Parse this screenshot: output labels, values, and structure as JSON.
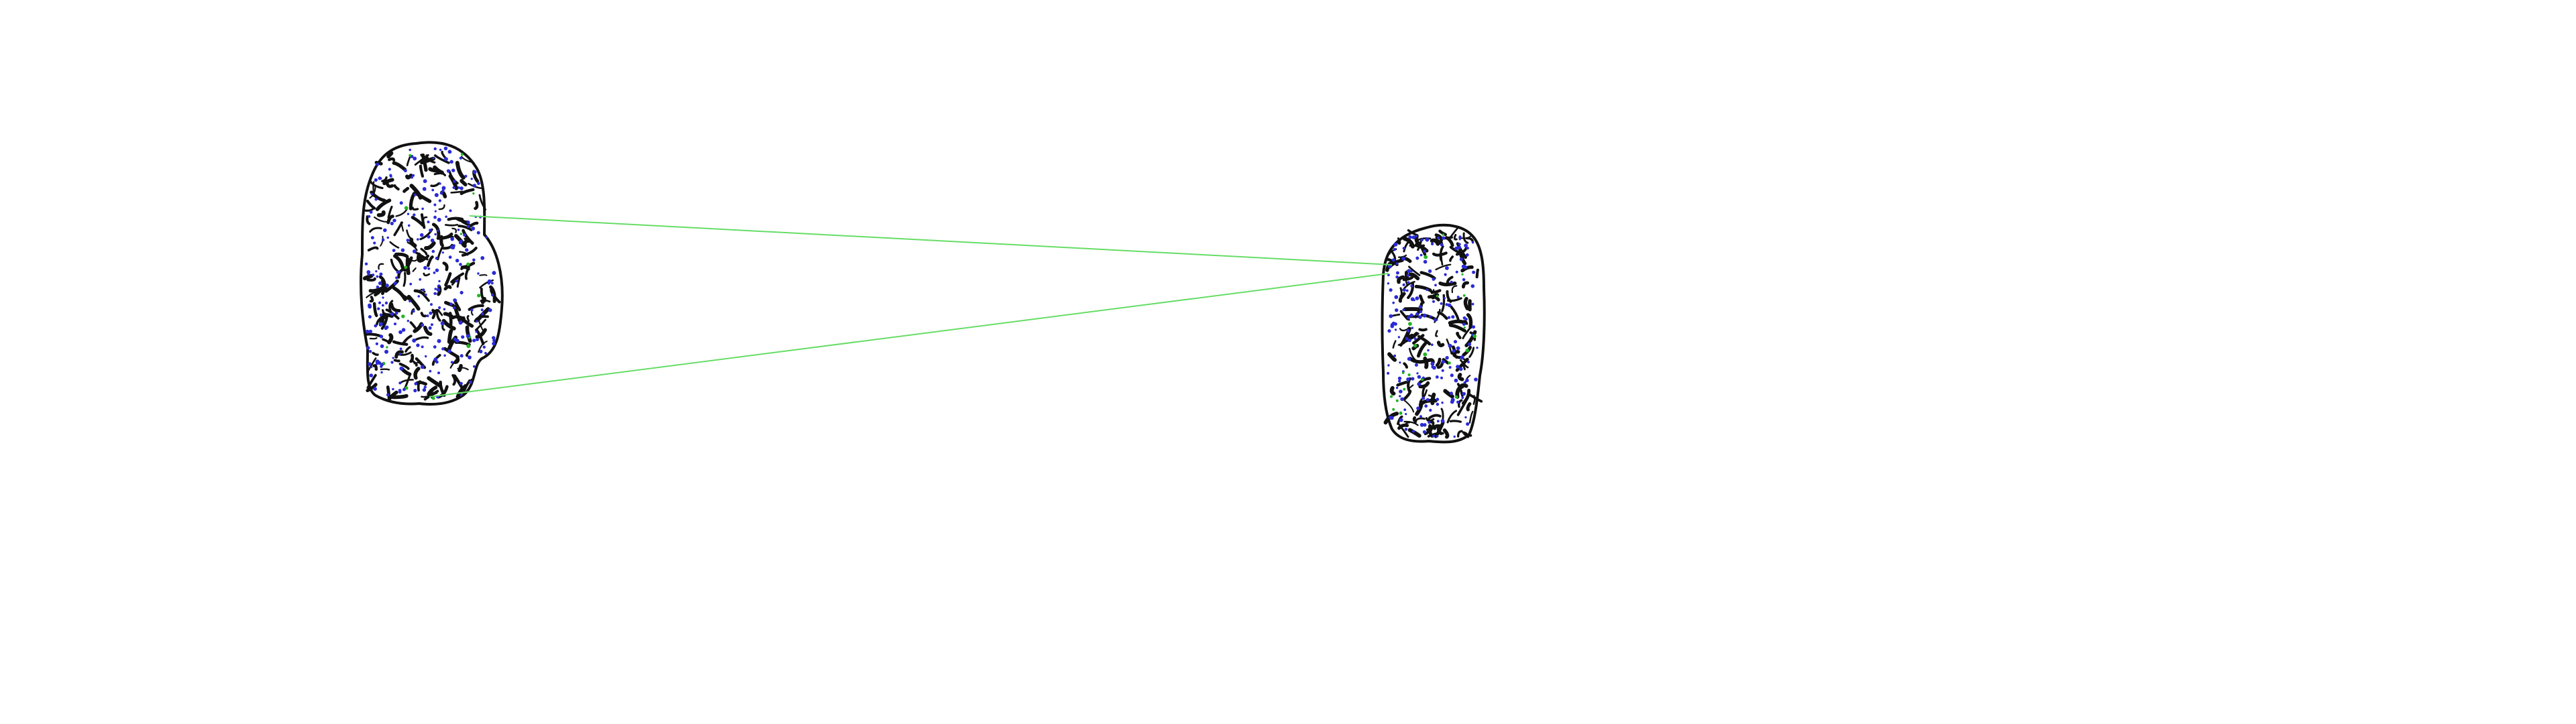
{
  "figure": {
    "kind": "feature-match-visualization",
    "background": "#ffffff",
    "colors": {
      "outline": "#111111",
      "edge_blobs": "#111111",
      "keypoints": "#2b2bd6",
      "inlier_keypoints": "#22b322",
      "match_lines": "#66dd66"
    },
    "shapes": [
      {
        "name": "specimen-left"
      },
      {
        "name": "specimen-right"
      }
    ],
    "matches": [
      {
        "name": "match-line-1"
      },
      {
        "name": "match-line-2"
      }
    ]
  }
}
